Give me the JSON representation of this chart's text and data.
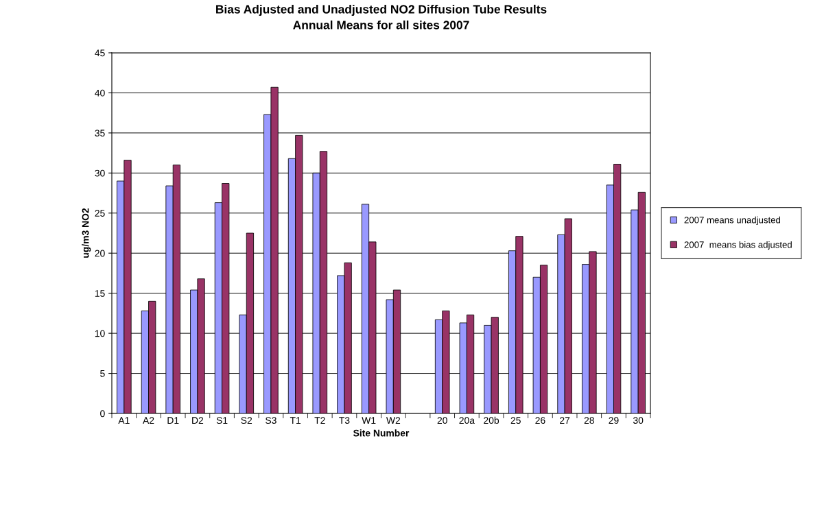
{
  "chart_data": {
    "type": "bar",
    "title": "Bias Adjusted and Unadjusted NO2 Diffusion Tube Results",
    "subtitle": "Annual Means for all sites 2007",
    "xlabel": "Site Number",
    "ylabel": "ug/m3 NO2",
    "categories": [
      "A1",
      "A2",
      "D1",
      "D2",
      "S1",
      "S2",
      "S3",
      "T1",
      "T2",
      "T3",
      "W1",
      "W2",
      null,
      "20",
      "20a",
      "20b",
      "25",
      "26",
      "27",
      "28",
      "29",
      "30"
    ],
    "series": [
      {
        "name": "2007 means unadjusted",
        "color": "#9999ff",
        "values": [
          29.0,
          12.8,
          28.4,
          15.4,
          26.3,
          12.3,
          37.3,
          31.8,
          30.0,
          17.2,
          26.1,
          14.2,
          null,
          11.7,
          11.3,
          11.0,
          20.3,
          17.0,
          22.3,
          18.6,
          28.5,
          25.4
        ]
      },
      {
        "name": "2007  means bias adjusted",
        "color": "#993366",
        "values": [
          31.6,
          14.0,
          31.0,
          16.8,
          28.7,
          22.5,
          40.7,
          34.7,
          32.7,
          18.8,
          21.4,
          15.4,
          null,
          12.8,
          12.3,
          12.0,
          22.1,
          18.5,
          24.3,
          20.2,
          31.1,
          27.6
        ]
      }
    ],
    "ylim": [
      0,
      45
    ],
    "yticks": [
      0,
      5,
      10,
      15,
      20,
      25,
      30,
      35,
      40,
      45
    ],
    "grid": "y",
    "legend": "right"
  }
}
